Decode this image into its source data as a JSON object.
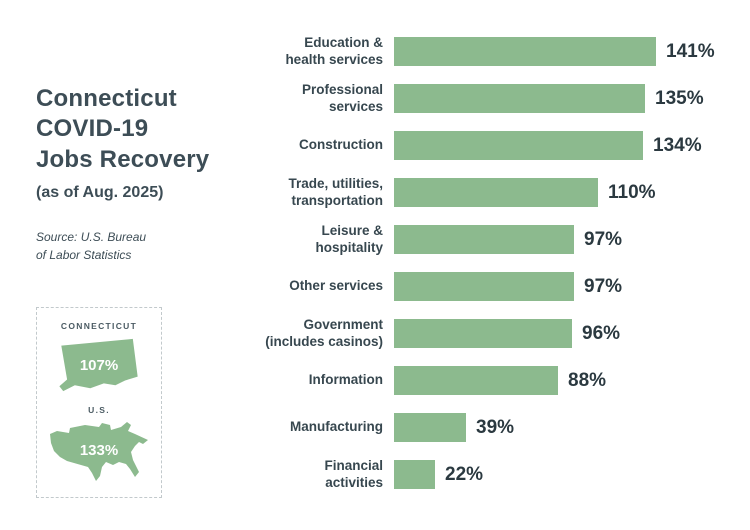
{
  "panel": {
    "title": "Connecticut\nCOVID-19\nJobs Recovery",
    "subtitle": "(as of Aug. 2025)",
    "source": "Source: U.S. Bureau\nof Labor Statistics",
    "comparison": {
      "connecticut_label": "CONNECTICUT",
      "connecticut_value": "107%",
      "us_label": "U.S.",
      "us_value": "133%"
    }
  },
  "colors": {
    "bar": "#8cba8e",
    "title_text": "#3d4d56",
    "value_text": "#2b3940"
  },
  "chart_data": {
    "type": "bar",
    "orientation": "horizontal",
    "title": "Connecticut COVID-19 Jobs Recovery (as of Aug. 2025)",
    "categories": [
      "Education &\nhealth services",
      "Professional\nservices",
      "Construction",
      "Trade, utilities,\ntransportation",
      "Leisure &\nhospitality",
      "Other services",
      "Government\n(includes casinos)",
      "Information",
      "Manufacturing",
      "Financial\nactivities"
    ],
    "values": [
      141,
      135,
      134,
      110,
      97,
      97,
      96,
      88,
      39,
      22
    ],
    "value_labels": [
      "141%",
      "135%",
      "134%",
      "110%",
      "97%",
      "97%",
      "96%",
      "88%",
      "39%",
      "22%"
    ],
    "xlim": [
      0,
      150
    ],
    "grid": false,
    "legend": false
  }
}
